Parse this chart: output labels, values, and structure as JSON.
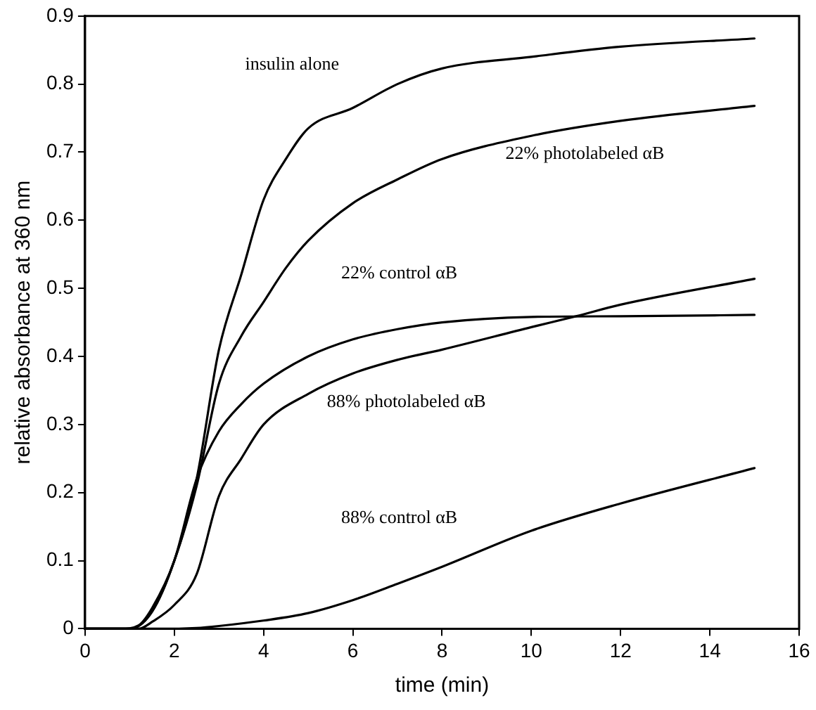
{
  "chart_data": {
    "type": "line",
    "xlabel": "time (min)",
    "ylabel": "relative absorbance at 360 nm",
    "xlim": [
      0,
      16
    ],
    "xticks": [
      0,
      2,
      4,
      6,
      8,
      10,
      12,
      14,
      16
    ],
    "ylim": [
      0,
      0.9
    ],
    "yticks": [
      0,
      0.1,
      0.2,
      0.3,
      0.4,
      0.5,
      0.6,
      0.7,
      0.8,
      0.9
    ],
    "grid": false,
    "legend": false,
    "marker": "none",
    "line_style": "solid",
    "series": [
      {
        "name": "insulin alone",
        "color": "#000000",
        "x": [
          0,
          0.8,
          1.2,
          1.5,
          2,
          2.5,
          3,
          3.5,
          4,
          4.5,
          5,
          6,
          7,
          8,
          10,
          12,
          15
        ],
        "values": [
          0,
          0,
          0.005,
          0.03,
          0.1,
          0.22,
          0.41,
          0.52,
          0.63,
          0.69,
          0.735,
          0.765,
          0.8,
          0.823,
          0.84,
          0.855,
          0.867
        ]
      },
      {
        "name": "22% photolabeled αB",
        "color": "#000000",
        "x": [
          0,
          1,
          1.5,
          2,
          2.5,
          3,
          3.5,
          4,
          4.5,
          5,
          6,
          7,
          8,
          10,
          12,
          15
        ],
        "values": [
          0,
          0,
          0.025,
          0.1,
          0.21,
          0.36,
          0.43,
          0.48,
          0.53,
          0.57,
          0.625,
          0.66,
          0.69,
          0.724,
          0.746,
          0.768
        ]
      },
      {
        "name": "22% control αB",
        "color": "#000000",
        "x": [
          0,
          1,
          1.5,
          2,
          2.5,
          3,
          3.5,
          4,
          5,
          6,
          7,
          8,
          10,
          12,
          15
        ],
        "values": [
          0,
          0,
          0.025,
          0.1,
          0.22,
          0.29,
          0.33,
          0.36,
          0.4,
          0.425,
          0.44,
          0.45,
          0.458,
          0.459,
          0.461
        ]
      },
      {
        "name": "88% photolabeled αB",
        "color": "#000000",
        "x": [
          0,
          1.2,
          1.5,
          2,
          2.5,
          3,
          3.5,
          4,
          5,
          6,
          7,
          8,
          10,
          11,
          12,
          15
        ],
        "values": [
          0,
          0,
          0.01,
          0.035,
          0.08,
          0.195,
          0.25,
          0.3,
          0.345,
          0.375,
          0.395,
          0.41,
          0.443,
          0.459,
          0.476,
          0.514
        ]
      },
      {
        "name": "88% control αB",
        "color": "#000000",
        "x": [
          0,
          2,
          2.5,
          3,
          4,
          5,
          6,
          7,
          8,
          10,
          12,
          15
        ],
        "values": [
          0,
          0,
          0.001,
          0.004,
          0.012,
          0.023,
          0.042,
          0.066,
          0.091,
          0.144,
          0.184,
          0.236
        ]
      }
    ]
  }
}
